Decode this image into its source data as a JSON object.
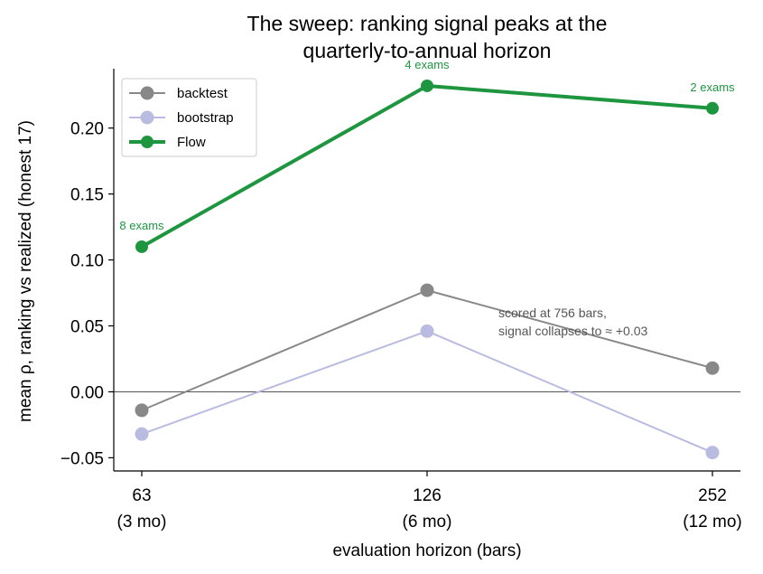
{
  "chart_data": {
    "type": "line",
    "title": [
      "The sweep: ranking signal peaks at the",
      "quarterly-to-annual horizon"
    ],
    "xlabel": "evaluation horizon (bars)",
    "ylabel": "mean ρ, ranking vs realized (honest 17)",
    "x": [
      63,
      126,
      252
    ],
    "x_tick_labels": [
      [
        "63",
        "(3 mo)"
      ],
      [
        "126",
        "(6 mo)"
      ],
      [
        "252",
        "(12 mo)"
      ]
    ],
    "ylim": [
      -0.06,
      0.245
    ],
    "y_ticks": [
      -0.05,
      0.0,
      0.05,
      0.1,
      0.15,
      0.2
    ],
    "y_tick_labels": [
      "−0.05",
      "0.00",
      "0.05",
      "0.10",
      "0.15",
      "0.20"
    ],
    "grid": false,
    "zero_line": true,
    "legend_position": "upper-left",
    "series": [
      {
        "name": "backtest",
        "values": [
          -0.014,
          0.077,
          0.018
        ],
        "color": "#888888",
        "width": "thin"
      },
      {
        "name": "bootstrap",
        "values": [
          -0.032,
          0.046,
          -0.046
        ],
        "color": "#b9bce0",
        "width": "thin"
      },
      {
        "name": "Flow",
        "values": [
          0.11,
          0.232,
          0.215
        ],
        "color": "#1e9640",
        "width": "thick"
      }
    ],
    "point_labels": [
      "8 exams",
      "4 exams",
      "2 exams"
    ],
    "annotation": [
      "scored at 756 bars,",
      "signal collapses to ≈ +0.03"
    ]
  }
}
